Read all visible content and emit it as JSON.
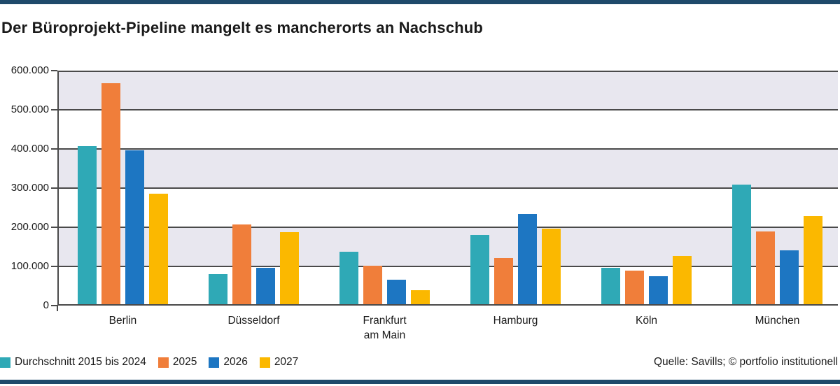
{
  "title": "Der Büroprojekt-Pipeline mangelt es mancherorts an Nachschub",
  "source": "Quelle: Savills; © portfolio institutionell",
  "colors": {
    "rule_navy": "#1F4A6B",
    "band_gray": "#E8E7EF",
    "band_white": "#FFFFFF",
    "grid": "#4A4A4A",
    "text": "#1A1A1A"
  },
  "chart_data": {
    "type": "bar",
    "categories": [
      "Berlin",
      "Düsseldorf",
      "Frankfurt\nam Main",
      "Hamburg",
      "Köln",
      "München"
    ],
    "series": [
      {
        "name": "Durchschnitt 2015 bis 2024",
        "color": "#2FA9B6",
        "values": [
          408000,
          80000,
          138000,
          180000,
          96000,
          309000
        ]
      },
      {
        "name": "2025",
        "color": "#F07E3A",
        "values": [
          567000,
          208000,
          102000,
          121000,
          90000,
          190000
        ]
      },
      {
        "name": "2026",
        "color": "#1D76C2",
        "values": [
          397000,
          96000,
          66000,
          234000,
          75000,
          141000
        ]
      },
      {
        "name": "2027",
        "color": "#FBB800",
        "values": [
          285000,
          188000,
          39000,
          196000,
          126000,
          228000
        ]
      }
    ],
    "title": "Der Büroprojekt-Pipeline mangelt es mancherorts an Nachschub",
    "xlabel": "",
    "ylabel": "",
    "ylim": [
      0,
      600000
    ],
    "ytick_interval": 100000,
    "ytick_labels": [
      "0",
      "100.000",
      "200.000",
      "300.000",
      "400.000",
      "500.000",
      "600.000"
    ],
    "grid": true,
    "band_fill": "alternating-horizontal",
    "legend_position": "bottom-left"
  }
}
